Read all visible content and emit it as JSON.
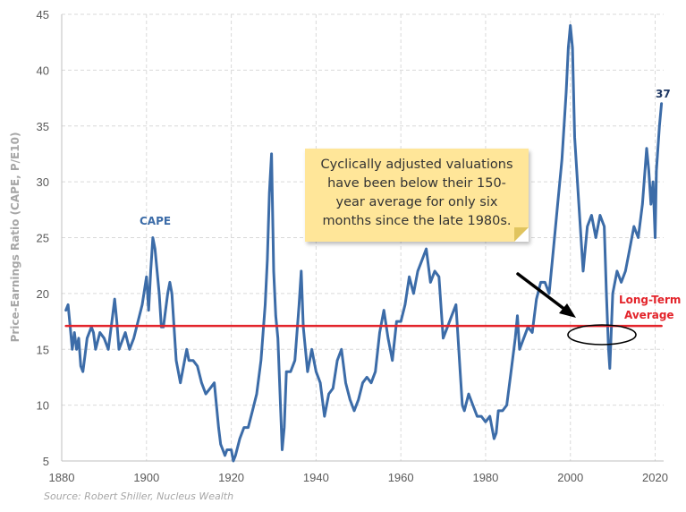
{
  "chart_data": {
    "type": "line",
    "title": "",
    "xlabel": "",
    "ylabel": "Price-Earnings Ratio (CAPE, P/E10)",
    "xlim": [
      1880,
      2022
    ],
    "ylim": [
      5,
      45
    ],
    "x_ticks": [
      "1880",
      "1900",
      "1920",
      "1940",
      "1960",
      "1980",
      "2000",
      "2020"
    ],
    "y_ticks": [
      "5",
      "10",
      "15",
      "20",
      "25",
      "30",
      "35",
      "40",
      "45"
    ],
    "grid": true,
    "series": [
      {
        "name": "CAPE",
        "color": "#3c6ca8",
        "points": [
          [
            1881,
            18.5
          ],
          [
            1881.5,
            19
          ],
          [
            1882,
            17
          ],
          [
            1882.5,
            15
          ],
          [
            1883,
            16.5
          ],
          [
            1883.5,
            15
          ],
          [
            1884,
            16
          ],
          [
            1884.5,
            13.5
          ],
          [
            1885,
            13
          ],
          [
            1885.5,
            14.5
          ],
          [
            1886,
            16
          ],
          [
            1887,
            17
          ],
          [
            1887.5,
            16.5
          ],
          [
            1888,
            15
          ],
          [
            1889,
            16.5
          ],
          [
            1890,
            16
          ],
          [
            1891,
            15
          ],
          [
            1892,
            18
          ],
          [
            1892.5,
            19.5
          ],
          [
            1893,
            17.5
          ],
          [
            1893.5,
            15
          ],
          [
            1894,
            15.5
          ],
          [
            1895,
            16.5
          ],
          [
            1896,
            15
          ],
          [
            1897,
            16
          ],
          [
            1898,
            17.5
          ],
          [
            1899,
            19
          ],
          [
            1900,
            21.5
          ],
          [
            1900.5,
            18.5
          ],
          [
            1901,
            22
          ],
          [
            1901.5,
            25
          ],
          [
            1902,
            24
          ],
          [
            1903,
            20
          ],
          [
            1903.5,
            17
          ],
          [
            1904,
            17
          ],
          [
            1905,
            20
          ],
          [
            1905.5,
            21
          ],
          [
            1906,
            20
          ],
          [
            1907,
            14
          ],
          [
            1908,
            12
          ],
          [
            1909,
            14
          ],
          [
            1909.5,
            15
          ],
          [
            1910,
            14
          ],
          [
            1911,
            14
          ],
          [
            1912,
            13.5
          ],
          [
            1913,
            12
          ],
          [
            1914,
            11
          ],
          [
            1915,
            11.5
          ],
          [
            1916,
            12
          ],
          [
            1916.5,
            10
          ],
          [
            1917,
            8
          ],
          [
            1917.5,
            6.5
          ],
          [
            1918,
            6
          ],
          [
            1918.5,
            5.5
          ],
          [
            1919,
            6
          ],
          [
            1920,
            6
          ],
          [
            1920.5,
            5
          ],
          [
            1921,
            5.5
          ],
          [
            1922,
            7
          ],
          [
            1923,
            8
          ],
          [
            1924,
            8
          ],
          [
            1925,
            9.5
          ],
          [
            1926,
            11
          ],
          [
            1927,
            14
          ],
          [
            1928,
            19
          ],
          [
            1928.5,
            23
          ],
          [
            1929,
            29
          ],
          [
            1929.5,
            32.5
          ],
          [
            1930,
            22
          ],
          [
            1930.5,
            18
          ],
          [
            1931,
            16
          ],
          [
            1931.5,
            11
          ],
          [
            1932,
            6
          ],
          [
            1932.5,
            8
          ],
          [
            1933,
            13
          ],
          [
            1934,
            13
          ],
          [
            1935,
            14
          ],
          [
            1936,
            19
          ],
          [
            1936.5,
            22
          ],
          [
            1937,
            17
          ],
          [
            1938,
            13
          ],
          [
            1939,
            15
          ],
          [
            1940,
            13
          ],
          [
            1941,
            12
          ],
          [
            1942,
            9
          ],
          [
            1943,
            11
          ],
          [
            1944,
            11.5
          ],
          [
            1945,
            14
          ],
          [
            1946,
            15
          ],
          [
            1947,
            12
          ],
          [
            1948,
            10.5
          ],
          [
            1949,
            9.5
          ],
          [
            1950,
            10.5
          ],
          [
            1951,
            12
          ],
          [
            1952,
            12.5
          ],
          [
            1953,
            12
          ],
          [
            1954,
            13
          ],
          [
            1955,
            16.5
          ],
          [
            1956,
            18.5
          ],
          [
            1957,
            16
          ],
          [
            1958,
            14
          ],
          [
            1959,
            17.5
          ],
          [
            1960,
            17.5
          ],
          [
            1961,
            19
          ],
          [
            1962,
            21.5
          ],
          [
            1963,
            20
          ],
          [
            1964,
            22
          ],
          [
            1965,
            23
          ],
          [
            1966,
            24
          ],
          [
            1967,
            21
          ],
          [
            1968,
            22
          ],
          [
            1969,
            21.5
          ],
          [
            1970,
            16
          ],
          [
            1971,
            17
          ],
          [
            1972,
            18
          ],
          [
            1973,
            19
          ],
          [
            1974,
            13
          ],
          [
            1974.5,
            10
          ],
          [
            1975,
            9.5
          ],
          [
            1976,
            11
          ],
          [
            1977,
            10
          ],
          [
            1978,
            9
          ],
          [
            1979,
            9
          ],
          [
            1980,
            8.5
          ],
          [
            1981,
            9
          ],
          [
            1982,
            7
          ],
          [
            1982.5,
            7.5
          ],
          [
            1983,
            9.5
          ],
          [
            1984,
            9.5
          ],
          [
            1985,
            10
          ],
          [
            1986,
            13
          ],
          [
            1987,
            16
          ],
          [
            1987.5,
            18
          ],
          [
            1988,
            15
          ],
          [
            1989,
            16
          ],
          [
            1990,
            17
          ],
          [
            1991,
            16.5
          ],
          [
            1992,
            19.5
          ],
          [
            1993,
            21
          ],
          [
            1994,
            21
          ],
          [
            1995,
            20
          ],
          [
            1996,
            24
          ],
          [
            1997,
            28
          ],
          [
            1998,
            32
          ],
          [
            1999,
            38
          ],
          [
            1999.5,
            42
          ],
          [
            2000,
            44
          ],
          [
            2000.5,
            42
          ],
          [
            2001,
            34
          ],
          [
            2002,
            28
          ],
          [
            2003,
            22
          ],
          [
            2004,
            26
          ],
          [
            2005,
            27
          ],
          [
            2006,
            25
          ],
          [
            2007,
            27
          ],
          [
            2008,
            26
          ],
          [
            2008.5,
            20
          ],
          [
            2009,
            15
          ],
          [
            2009.3,
            13.3
          ],
          [
            2010,
            20
          ],
          [
            2011,
            22
          ],
          [
            2012,
            21
          ],
          [
            2013,
            22
          ],
          [
            2014,
            24
          ],
          [
            2015,
            26
          ],
          [
            2016,
            25
          ],
          [
            2017,
            28
          ],
          [
            2018,
            33
          ],
          [
            2018.5,
            31
          ],
          [
            2019,
            28
          ],
          [
            2019.5,
            30
          ],
          [
            2020,
            25
          ],
          [
            2020.3,
            31
          ],
          [
            2021,
            35
          ],
          [
            2021.5,
            37
          ]
        ]
      },
      {
        "name": "Long-Term Average",
        "color": "#e3242b",
        "points": [
          [
            1881,
            17.1
          ],
          [
            2021.5,
            17.1
          ]
        ]
      }
    ],
    "labels": {
      "cape": "CAPE",
      "last_value": "37",
      "avg_line1": "Long-Term",
      "avg_line2": "Average"
    },
    "annotation": {
      "lines": [
        "Cyclically adjusted valuations",
        "have been below their 150-",
        "year average for only six",
        "months since the late 1980s."
      ]
    },
    "source": "Source: Robert Shiller, Nucleus Wealth"
  }
}
